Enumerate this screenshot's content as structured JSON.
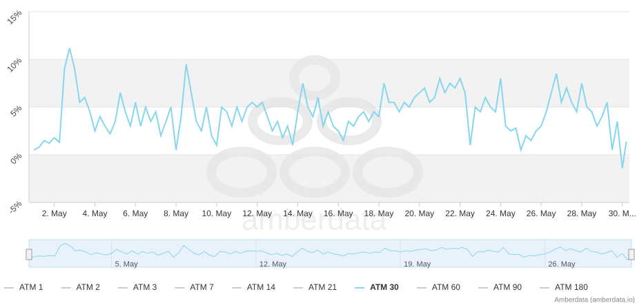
{
  "chart_data": {
    "type": "line",
    "watermark": "amberdata",
    "credits": "Amberdata  (amberdata.io)",
    "x": [
      1,
      1.25,
      1.5,
      1.75,
      2,
      2.25,
      2.5,
      2.75,
      3,
      3.25,
      3.5,
      3.75,
      4,
      4.25,
      4.5,
      4.75,
      5,
      5.25,
      5.5,
      5.75,
      6,
      6.25,
      6.5,
      6.75,
      7,
      7.25,
      7.5,
      7.75,
      8,
      8.25,
      8.5,
      8.75,
      9,
      9.25,
      9.5,
      9.75,
      10,
      10.25,
      10.5,
      10.75,
      11,
      11.25,
      11.5,
      11.75,
      12,
      12.25,
      12.5,
      12.75,
      13,
      13.25,
      13.5,
      13.75,
      14,
      14.25,
      14.5,
      14.75,
      15,
      15.25,
      15.5,
      15.75,
      16,
      16.25,
      16.5,
      16.75,
      17,
      17.25,
      17.5,
      17.75,
      18,
      18.25,
      18.5,
      18.75,
      19,
      19.25,
      19.5,
      19.75,
      20,
      20.25,
      20.5,
      20.75,
      21,
      21.25,
      21.5,
      21.75,
      22,
      22.25,
      22.5,
      22.75,
      23,
      23.25,
      23.5,
      23.75,
      24,
      24.25,
      24.5,
      24.75,
      25,
      25.25,
      25.5,
      25.75,
      26,
      26.25,
      26.5,
      26.75,
      27,
      27.25,
      27.5,
      27.75,
      28,
      28.25,
      28.5,
      28.75,
      29,
      29.25,
      29.5,
      29.75,
      30,
      30.2
    ],
    "series": [
      {
        "name": "ATM 1",
        "visible": false
      },
      {
        "name": "ATM 2",
        "visible": false
      },
      {
        "name": "ATM 3",
        "visible": false
      },
      {
        "name": "ATM 7",
        "visible": false
      },
      {
        "name": "ATM 14",
        "visible": false
      },
      {
        "name": "ATM 21",
        "visible": false
      },
      {
        "name": "ATM 30",
        "visible": true,
        "color": "#86d6ee",
        "values": [
          0.5,
          0.8,
          1.5,
          1.2,
          1.8,
          1.3,
          9,
          11.2,
          9,
          5.5,
          6,
          4.5,
          2.5,
          4,
          3,
          2.2,
          3.5,
          6.5,
          4.5,
          3,
          5.5,
          3,
          5,
          3.5,
          4.5,
          2,
          3.5,
          5,
          0.5,
          4,
          9.5,
          6.5,
          3.5,
          2.5,
          5,
          2,
          1,
          5,
          4.5,
          3,
          5,
          3.5,
          5,
          5.5,
          5,
          5.5,
          4,
          2.5,
          3.5,
          1.8,
          3,
          1,
          4.5,
          7.5,
          5,
          4,
          6,
          3,
          4.5,
          3,
          2.5,
          1.5,
          3.5,
          3,
          4,
          4.5,
          3.5,
          4.5,
          4,
          7.5,
          5.5,
          5.5,
          4.5,
          5.5,
          5,
          6,
          6.5,
          7,
          5.5,
          6,
          8,
          6.5,
          7.5,
          7,
          8,
          6.5,
          1,
          5,
          4.5,
          6,
          5,
          4.5,
          8,
          3,
          2.5,
          2.8,
          0.5,
          2,
          1.5,
          2.5,
          3,
          4.5,
          6.5,
          8.5,
          5.5,
          7,
          5.5,
          4.5,
          7.5,
          5,
          4.5,
          3,
          4,
          5.5,
          0.5,
          3.5,
          -1.4,
          1.4
        ]
      },
      {
        "name": "ATM 60",
        "visible": false
      },
      {
        "name": "ATM 90",
        "visible": false
      },
      {
        "name": "ATM 180",
        "visible": false
      }
    ],
    "xlim": [
      0.75,
      30.35
    ],
    "xticks": [
      {
        "value": 2,
        "label": "2. May"
      },
      {
        "value": 4,
        "label": "4. May"
      },
      {
        "value": 6,
        "label": "6. May"
      },
      {
        "value": 8,
        "label": "8. May"
      },
      {
        "value": 10,
        "label": "10. May"
      },
      {
        "value": 12,
        "label": "12. May"
      },
      {
        "value": 14,
        "label": "14. May"
      },
      {
        "value": 16,
        "label": "16. May"
      },
      {
        "value": 18,
        "label": "18. May"
      },
      {
        "value": 20,
        "label": "20. May"
      },
      {
        "value": 22,
        "label": "22. May"
      },
      {
        "value": 24,
        "label": "24. May"
      },
      {
        "value": 26,
        "label": "26. May"
      },
      {
        "value": 28,
        "label": "28. May"
      },
      {
        "value": 30,
        "label": "30. M..."
      }
    ],
    "ylim": [
      -5,
      15
    ],
    "yticks": [
      {
        "value": -5,
        "label": "-5%"
      },
      {
        "value": 0,
        "label": "0%"
      },
      {
        "value": 5,
        "label": "5%"
      },
      {
        "value": 10,
        "label": "10%"
      },
      {
        "value": 15,
        "label": "15%"
      }
    ],
    "grid": true,
    "alternate_bands": true,
    "navigator": {
      "xlim": [
        1,
        30.2
      ],
      "xticks": [
        {
          "value": 5,
          "label": "5. May"
        },
        {
          "value": 12,
          "label": "12. May"
        },
        {
          "value": 19,
          "label": "19. May"
        },
        {
          "value": 26,
          "label": "26. May"
        }
      ]
    }
  }
}
